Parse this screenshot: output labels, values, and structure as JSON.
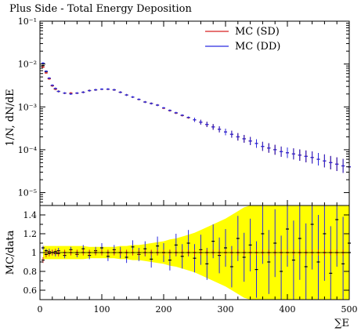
{
  "title": "Plus Side - Total Energy Deposition",
  "main": {
    "ylabel": "1/N, dN/dE"
  },
  "ratio": {
    "ylabel": "MC/data"
  },
  "xlabel": "∑E",
  "legend": [
    {
      "label": "MC (SD)",
      "color": "#d62020"
    },
    {
      "label": "MC (DD)",
      "color": "#2a2ae0"
    }
  ],
  "chart_data": [
    {
      "type": "scatter",
      "panel": "main",
      "title": "Plus Side - Total Energy Deposition",
      "ylabel": "1/N, dN/dE",
      "yscale": "log",
      "xlim": [
        0,
        500
      ],
      "ylim": [
        5e-06,
        0.1
      ],
      "yticks": [
        "10⁻⁵",
        "10⁻⁴",
        "10⁻³",
        "10⁻²",
        "10⁻¹"
      ],
      "legend_position": "top-right",
      "x": [
        5,
        10,
        15,
        20,
        25,
        30,
        40,
        50,
        60,
        70,
        80,
        90,
        100,
        110,
        120,
        130,
        140,
        150,
        160,
        170,
        180,
        190,
        200,
        210,
        220,
        230,
        240,
        250,
        260,
        270,
        280,
        290,
        300,
        310,
        320,
        330,
        340,
        350,
        360,
        370,
        380,
        390,
        400,
        410,
        420,
        430,
        440,
        450,
        460,
        470,
        480,
        490,
        500
      ],
      "series": [
        {
          "name": "MC (SD)",
          "color": "#d62020",
          "values": [
            0.0085,
            0.0062,
            0.0045,
            0.0031,
            0.0026,
            0.0023,
            0.0021,
            0.0021,
            0.0021,
            0.0022,
            0.0024,
            0.0025,
            0.0026,
            0.0026,
            0.0025,
            0.0022,
            0.0019,
            0.0017,
            0.0015,
            0.0013,
            0.0012,
            0.0011,
            0.00093,
            0.00082,
            0.00072,
            0.00063,
            0.00056,
            0.0005,
            0.00044,
            0.00039,
            0.00034,
            0.0003,
            0.00026,
            0.00023,
            0.0002,
            0.00018,
            0.00016,
            0.00014,
            0.00012,
            0.00011,
            0.0001,
            9e-05,
            8.5e-05,
            8e-05,
            7.5e-05,
            7e-05,
            6.6e-05,
            6e-05,
            5.5e-05,
            5e-05,
            4.6e-05,
            4.2e-05,
            4e-05
          ]
        },
        {
          "name": "MC (DD)",
          "color": "#2a2ae0",
          "values": [
            0.0105,
            0.0068,
            0.0047,
            0.0032,
            0.0027,
            0.0023,
            0.0021,
            0.002,
            0.0021,
            0.0022,
            0.0024,
            0.0025,
            0.0026,
            0.0026,
            0.0025,
            0.0022,
            0.0019,
            0.0017,
            0.0015,
            0.0013,
            0.0012,
            0.0011,
            0.00095,
            0.00083,
            0.00073,
            0.00064,
            0.00057,
            0.0005,
            0.00044,
            0.00039,
            0.00034,
            0.0003,
            0.00026,
            0.00023,
            0.0002,
            0.00018,
            0.00016,
            0.00014,
            0.00012,
            0.00011,
            0.0001,
            9e-05,
            8.5e-05,
            8e-05,
            7.5e-05,
            7e-05,
            6.6e-05,
            6e-05,
            5.5e-05,
            5e-05,
            4.6e-05,
            4.2e-05,
            4e-05
          ]
        },
        {
          "name": "data",
          "color": "#000000",
          "values": [
            0.0092,
            0.0066,
            0.0046,
            0.0031,
            0.0026,
            0.0023,
            0.0021,
            0.0021,
            0.0021,
            0.0022,
            0.0024,
            0.0025,
            0.0026,
            0.0026,
            0.0025,
            0.0022,
            0.0019,
            0.0017,
            0.0015,
            0.0013,
            0.0012,
            0.0011,
            0.00094,
            0.00082,
            0.00072,
            0.00063,
            0.00056,
            0.0005,
            0.00044,
            0.00039,
            0.00034,
            0.0003,
            0.00026,
            0.00023,
            0.0002,
            0.00018,
            0.00016,
            0.00014,
            0.00012,
            0.00011,
            0.0001,
            9e-05,
            8.5e-05,
            8e-05,
            7.5e-05,
            7e-05,
            6.6e-05,
            6e-05,
            5.5e-05,
            5e-05,
            4.6e-05,
            4.2e-05,
            4e-05
          ]
        }
      ]
    },
    {
      "type": "scatter",
      "panel": "ratio",
      "ylabel": "MC/data",
      "xlabel": "∑E",
      "xlim": [
        0,
        500
      ],
      "ylim": [
        0.5,
        1.5
      ],
      "xticks": [
        "0",
        "100",
        "200",
        "300",
        "400",
        "500"
      ],
      "yticks": [
        "0.6",
        "0.8",
        "1",
        "1.2",
        "1.4"
      ],
      "x": [
        5,
        10,
        15,
        20,
        25,
        30,
        40,
        50,
        60,
        70,
        80,
        90,
        100,
        110,
        120,
        130,
        140,
        150,
        160,
        170,
        180,
        190,
        200,
        210,
        220,
        230,
        240,
        250,
        260,
        270,
        280,
        290,
        300,
        310,
        320,
        330,
        340,
        350,
        360,
        370,
        380,
        390,
        400,
        410,
        420,
        430,
        440,
        450,
        460,
        470,
        480,
        490,
        500
      ],
      "uncertainty_band": {
        "color": "#ffff00",
        "halfwidth": [
          0.07,
          0.07,
          0.07,
          0.07,
          0.07,
          0.07,
          0.07,
          0.07,
          0.07,
          0.07,
          0.06,
          0.06,
          0.06,
          0.06,
          0.06,
          0.07,
          0.07,
          0.08,
          0.08,
          0.09,
          0.1,
          0.11,
          0.12,
          0.14,
          0.15,
          0.17,
          0.19,
          0.21,
          0.24,
          0.27,
          0.3,
          0.33,
          0.36,
          0.4,
          0.44,
          0.48,
          0.5,
          0.5,
          0.5,
          0.5,
          0.5,
          0.5,
          0.5,
          0.5,
          0.5,
          0.5,
          0.5,
          0.5,
          0.5,
          0.5,
          0.5,
          0.5,
          0.5
        ]
      },
      "series": [
        {
          "name": "MC (DD)",
          "color": "#2a2ae0",
          "values": [
            1.05,
            1.02,
            1.01,
            1.0,
            0.99,
            1.02,
            0.97,
            1.03,
            0.98,
            1.04,
            0.97,
            1.02,
            1.05,
            0.96,
            1.03,
            1.0,
            0.95,
            1.06,
            0.98,
            1.04,
            0.93,
            1.07,
            1.0,
            0.92,
            1.08,
            0.96,
            1.1,
            0.94,
            1.03,
            0.88,
            1.12,
            0.97,
            1.05,
            0.85,
            1.15,
            0.95,
            1.08,
            0.82,
            1.2,
            0.9,
            1.1,
            0.8,
            1.25,
            0.92,
            1.15,
            0.85,
            1.3,
            0.9,
            1.2,
            0.78,
            1.35,
            0.88,
            1.1
          ],
          "errors": [
            0.02,
            0.02,
            0.03,
            0.03,
            0.03,
            0.03,
            0.03,
            0.03,
            0.03,
            0.04,
            0.04,
            0.04,
            0.05,
            0.05,
            0.05,
            0.06,
            0.06,
            0.07,
            0.07,
            0.08,
            0.09,
            0.1,
            0.1,
            0.11,
            0.12,
            0.13,
            0.14,
            0.15,
            0.16,
            0.17,
            0.18,
            0.19,
            0.2,
            0.22,
            0.24,
            0.26,
            0.28,
            0.3,
            0.32,
            0.34,
            0.36,
            0.38,
            0.4,
            0.42,
            0.44,
            0.46,
            0.48,
            0.5,
            0.5,
            0.5,
            0.5,
            0.5,
            0.5
          ]
        },
        {
          "name": "MC (SD)",
          "color": "#d62020",
          "values": [
            0.92,
            0.98,
            0.99,
            1.0,
            1.01,
            0.99,
            1.0,
            1.0,
            1.0,
            1.0,
            1.0,
            1.0,
            1.0,
            1.0,
            1.0,
            1.0,
            1.0,
            1.0,
            1.0,
            1.0,
            1.0,
            1.0,
            1.0,
            1.0,
            1.0,
            1.0,
            1.0,
            1.0,
            1.0,
            1.0,
            1.0,
            1.0,
            1.0,
            1.0,
            1.0,
            1.0,
            1.0,
            1.0,
            1.0,
            1.0,
            1.0,
            1.0,
            1.0,
            1.0,
            1.0,
            1.0,
            1.0,
            1.0,
            1.0,
            1.0,
            1.0,
            1.0,
            1.0
          ]
        }
      ]
    }
  ]
}
